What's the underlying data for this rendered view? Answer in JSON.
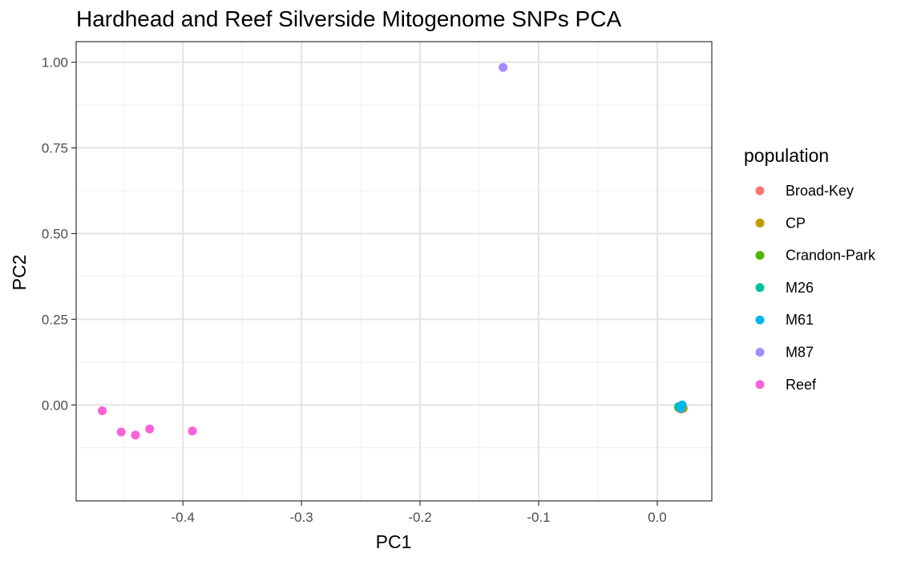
{
  "chart_data": {
    "type": "scatter",
    "title": "Hardhead and Reef Silverside Mitogenome SNPs PCA",
    "xlabel": "PC1",
    "ylabel": "PC2",
    "xlim": [
      -0.49,
      0.046
    ],
    "ylim": [
      -0.28,
      1.06
    ],
    "x_ticks": [
      -0.4,
      -0.3,
      -0.2,
      -0.1,
      0.0
    ],
    "x_tick_labels": [
      "-0.4",
      "-0.3",
      "-0.2",
      "-0.1",
      "0.0"
    ],
    "y_ticks": [
      0.0,
      0.25,
      0.5,
      0.75,
      1.0
    ],
    "y_tick_labels": [
      "0.00",
      "0.25",
      "0.50",
      "0.75",
      "1.00"
    ],
    "grid": true,
    "legend": {
      "title": "population",
      "position": "right"
    },
    "series": [
      {
        "name": "Broad-Key",
        "color": "#F8766D",
        "points": [
          [
            0.019,
            -0.01
          ],
          [
            0.02,
            -0.012
          ]
        ]
      },
      {
        "name": "CP",
        "color": "#C49A00",
        "points": [
          [
            0.022,
            -0.01
          ],
          [
            0.018,
            -0.008
          ]
        ]
      },
      {
        "name": "Crandon-Park",
        "color": "#53B400",
        "points": [
          [
            0.019,
            -0.006
          ]
        ]
      },
      {
        "name": "M26",
        "color": "#00C094",
        "points": [
          [
            0.018,
            -0.005
          ],
          [
            0.02,
            -0.009
          ]
        ]
      },
      {
        "name": "M61",
        "color": "#00B6EB",
        "points": [
          [
            0.021,
            0.0
          ],
          [
            0.02,
            -0.01
          ]
        ]
      },
      {
        "name": "M87",
        "color": "#A58AFF",
        "points": [
          [
            -0.13,
            0.985
          ]
        ]
      },
      {
        "name": "Reef",
        "color": "#FB61D7",
        "points": [
          [
            -0.468,
            -0.017
          ],
          [
            -0.452,
            -0.079
          ],
          [
            -0.44,
            -0.088
          ],
          [
            -0.428,
            -0.07
          ],
          [
            -0.392,
            -0.076
          ]
        ]
      }
    ]
  }
}
